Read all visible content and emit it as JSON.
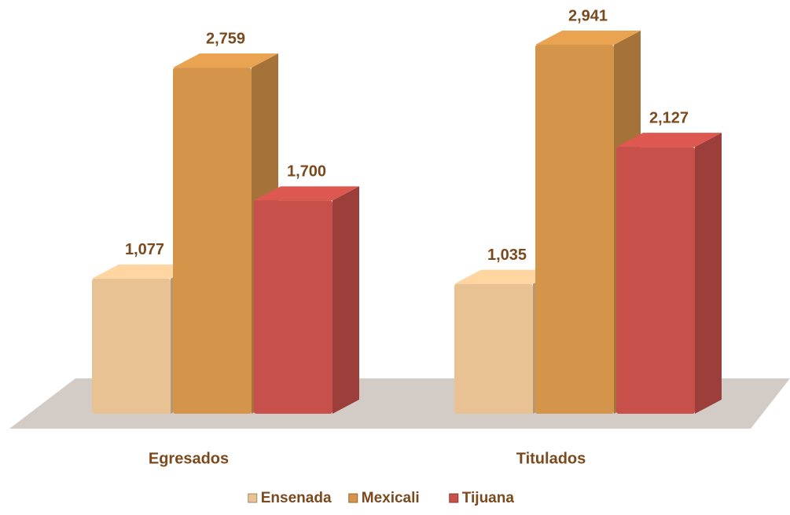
{
  "chart_data": {
    "type": "bar3d",
    "categories": [
      "Egresados",
      "Titulados"
    ],
    "series": [
      {
        "name": "Ensenada",
        "color": "#e9c293",
        "values": [
          1077,
          1035
        ],
        "value_labels": [
          "1,077",
          "1,035"
        ]
      },
      {
        "name": "Mexicali",
        "color": "#d4944a",
        "values": [
          2759,
          2941
        ],
        "value_labels": [
          "2,759",
          "2,941"
        ]
      },
      {
        "name": "Tijuana",
        "color": "#c8504a",
        "values": [
          1700,
          2127
        ],
        "value_labels": [
          "1,700",
          "2,127"
        ]
      }
    ],
    "legend": "bottom"
  }
}
